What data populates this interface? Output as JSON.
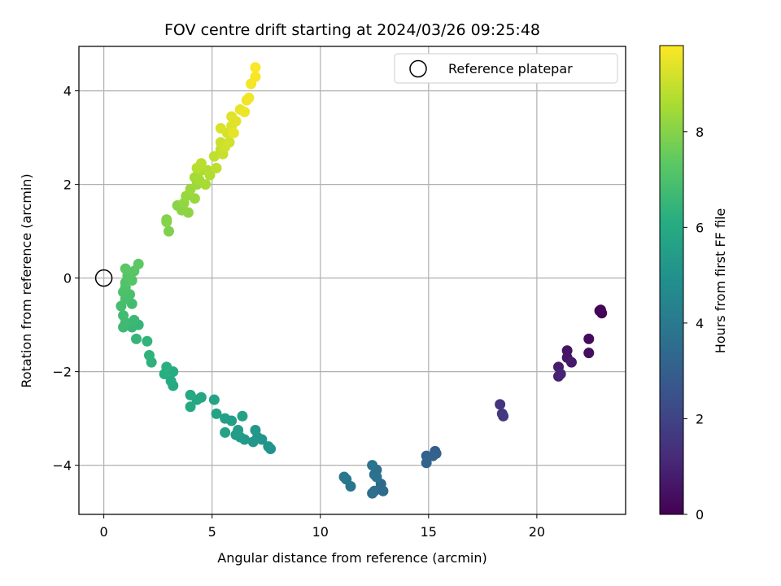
{
  "chart_data": {
    "type": "scatter",
    "title": "FOV centre drift starting at 2024/03/26 09:25:48",
    "xlabel": "Angular distance from reference (arcmin)",
    "ylabel": "Rotation from reference (arcmin)",
    "xlim": [
      -1.15,
      24.1
    ],
    "ylim": [
      -5.05,
      4.95
    ],
    "xticks": [
      0,
      5,
      10,
      15,
      20
    ],
    "yticks": [
      -4,
      -2,
      0,
      2,
      4
    ],
    "grid": true,
    "legend": {
      "placement": "top-right",
      "entries": [
        "Reference platepar"
      ]
    },
    "reference_point": {
      "name": "Reference platepar",
      "x": 0,
      "y": 0
    },
    "colorbar": {
      "label": "Hours from first FF file",
      "colormap": "viridis",
      "range": [
        0,
        9.8
      ],
      "ticks": [
        0,
        2,
        4,
        6,
        8
      ]
    },
    "series": [
      {
        "values_note": "points as [x, y, hours]",
        "points": [
          [
            22.9,
            -0.7,
            0.0
          ],
          [
            23.0,
            -0.75,
            0.1
          ],
          [
            22.95,
            -0.68,
            0.15
          ],
          [
            22.4,
            -1.3,
            0.3
          ],
          [
            22.4,
            -1.6,
            0.4
          ],
          [
            21.4,
            -1.55,
            0.5
          ],
          [
            21.4,
            -1.7,
            0.6
          ],
          [
            21.6,
            -1.8,
            0.7
          ],
          [
            21.0,
            -1.9,
            0.8
          ],
          [
            21.0,
            -2.1,
            0.9
          ],
          [
            21.1,
            -2.05,
            1.0
          ],
          [
            18.3,
            -2.7,
            1.5
          ],
          [
            18.4,
            -2.9,
            1.6
          ],
          [
            18.45,
            -2.95,
            1.7
          ],
          [
            15.3,
            -3.7,
            3.0
          ],
          [
            15.35,
            -3.75,
            3.05
          ],
          [
            15.2,
            -3.8,
            3.1
          ],
          [
            14.9,
            -3.8,
            3.15
          ],
          [
            14.9,
            -3.95,
            3.2
          ],
          [
            12.8,
            -4.4,
            3.4
          ],
          [
            12.9,
            -4.55,
            3.45
          ],
          [
            12.5,
            -4.55,
            3.5
          ],
          [
            12.4,
            -4.6,
            3.55
          ],
          [
            12.6,
            -4.1,
            3.6
          ],
          [
            12.5,
            -4.2,
            3.65
          ],
          [
            12.6,
            -4.25,
            3.7
          ],
          [
            12.4,
            -4.0,
            3.75
          ],
          [
            11.4,
            -4.45,
            3.8
          ],
          [
            11.2,
            -4.3,
            3.85
          ],
          [
            11.1,
            -4.25,
            3.9
          ],
          [
            7.7,
            -3.65,
            5.0
          ],
          [
            7.6,
            -3.6,
            5.05
          ],
          [
            7.3,
            -3.45,
            5.1
          ],
          [
            7.1,
            -3.4,
            5.15
          ],
          [
            7.0,
            -3.25,
            5.2
          ],
          [
            6.9,
            -3.5,
            5.25
          ],
          [
            6.5,
            -3.45,
            5.3
          ],
          [
            6.3,
            -3.4,
            5.35
          ],
          [
            6.1,
            -3.35,
            5.4
          ],
          [
            6.2,
            -3.25,
            5.45
          ],
          [
            5.9,
            -3.05,
            5.5
          ],
          [
            5.6,
            -3.0,
            5.55
          ],
          [
            5.6,
            -3.3,
            5.6
          ],
          [
            6.4,
            -2.95,
            5.65
          ],
          [
            5.2,
            -2.9,
            5.7
          ],
          [
            5.1,
            -2.6,
            5.75
          ],
          [
            4.5,
            -2.55,
            5.8
          ],
          [
            4.3,
            -2.6,
            5.85
          ],
          [
            4.0,
            -2.5,
            5.9
          ],
          [
            4.0,
            -2.75,
            5.95
          ],
          [
            3.2,
            -2.3,
            6.0
          ],
          [
            3.1,
            -2.2,
            6.05
          ],
          [
            3.2,
            -2.0,
            6.1
          ],
          [
            2.8,
            -2.05,
            6.15
          ],
          [
            2.9,
            -1.9,
            6.2
          ],
          [
            2.2,
            -1.8,
            6.3
          ],
          [
            2.1,
            -1.65,
            6.35
          ],
          [
            2.0,
            -1.35,
            6.4
          ],
          [
            1.5,
            -1.3,
            6.45
          ],
          [
            1.6,
            -1.0,
            6.5
          ],
          [
            1.3,
            -1.05,
            6.55
          ],
          [
            1.4,
            -0.9,
            6.6
          ],
          [
            0.9,
            -1.05,
            6.65
          ],
          [
            1.0,
            -0.95,
            6.7
          ],
          [
            0.9,
            -0.8,
            6.75
          ],
          [
            1.3,
            -0.55,
            6.8
          ],
          [
            0.8,
            -0.6,
            6.85
          ],
          [
            1.0,
            -0.45,
            6.9
          ],
          [
            1.2,
            -0.35,
            6.95
          ],
          [
            0.9,
            -0.3,
            7.0
          ],
          [
            1.0,
            -0.2,
            7.05
          ],
          [
            1.0,
            -0.1,
            7.1
          ],
          [
            1.3,
            -0.05,
            7.15
          ],
          [
            1.1,
            0.05,
            7.2
          ],
          [
            1.4,
            0.15,
            7.25
          ],
          [
            1.0,
            0.2,
            7.3
          ],
          [
            1.6,
            0.3,
            7.35
          ],
          [
            3.0,
            1.0,
            7.9
          ],
          [
            2.9,
            1.25,
            7.95
          ],
          [
            2.9,
            1.2,
            8.0
          ],
          [
            3.4,
            1.55,
            8.05
          ],
          [
            3.6,
            1.45,
            8.1
          ],
          [
            3.9,
            1.4,
            8.15
          ],
          [
            3.7,
            1.6,
            8.2
          ],
          [
            3.8,
            1.75,
            8.25
          ],
          [
            4.2,
            1.7,
            8.3
          ],
          [
            4.0,
            1.9,
            8.35
          ],
          [
            4.3,
            2.0,
            8.4
          ],
          [
            4.2,
            2.15,
            8.45
          ],
          [
            4.4,
            2.1,
            8.5
          ],
          [
            4.7,
            2.0,
            8.55
          ],
          [
            4.5,
            2.3,
            8.6
          ],
          [
            4.9,
            2.2,
            8.65
          ],
          [
            4.8,
            2.3,
            8.7
          ],
          [
            4.3,
            2.35,
            8.75
          ],
          [
            4.5,
            2.45,
            8.8
          ],
          [
            5.2,
            2.35,
            8.85
          ],
          [
            5.1,
            2.6,
            8.9
          ],
          [
            5.4,
            2.75,
            8.95
          ],
          [
            5.5,
            2.65,
            9.0
          ],
          [
            5.4,
            2.9,
            9.05
          ],
          [
            5.6,
            2.8,
            9.1
          ],
          [
            5.8,
            2.9,
            9.15
          ],
          [
            5.7,
            3.1,
            9.2
          ],
          [
            5.4,
            3.2,
            9.25
          ],
          [
            5.9,
            3.25,
            9.3
          ],
          [
            5.9,
            3.45,
            9.35
          ],
          [
            6.1,
            3.35,
            9.4
          ],
          [
            6.0,
            3.1,
            9.45
          ],
          [
            6.3,
            3.6,
            9.5
          ],
          [
            6.5,
            3.55,
            9.55
          ],
          [
            6.6,
            3.8,
            9.6
          ],
          [
            6.7,
            3.85,
            9.62
          ],
          [
            6.8,
            4.15,
            9.65
          ],
          [
            7.0,
            4.3,
            9.7
          ],
          [
            7.0,
            4.5,
            9.75
          ]
        ]
      }
    ]
  }
}
